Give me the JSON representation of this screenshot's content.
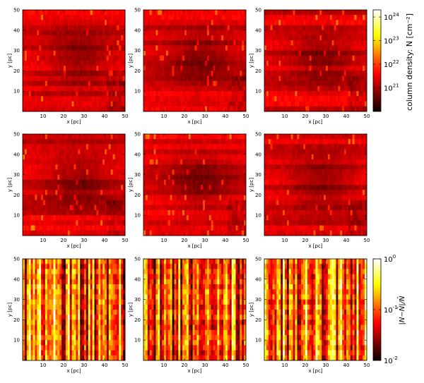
{
  "figure": {
    "rows": 3,
    "cols": 3,
    "description": "3x3 grid of column-density maps (top two rows) and relative-difference maps (bottom row)"
  },
  "chart_data": [
    {
      "type": "heatmap",
      "panel": "r1c1",
      "row": 0,
      "col": 0,
      "colormap": "hot",
      "field": "density",
      "xlabel": "x [pc]",
      "ylabel": "y [pc]",
      "xlim": [
        0,
        50
      ],
      "ylim": [
        0,
        50
      ],
      "xticks": [
        10,
        20,
        30,
        40,
        50
      ],
      "yticks": [
        10,
        20,
        30,
        40,
        50
      ],
      "seed": 11
    },
    {
      "type": "heatmap",
      "panel": "r1c2",
      "row": 0,
      "col": 1,
      "colormap": "hot",
      "field": "density",
      "xlabel": "x [pc]",
      "ylabel": "y [pc]",
      "xlim": [
        0,
        50
      ],
      "ylim": [
        0,
        50
      ],
      "xticks": [
        10,
        20,
        30,
        40,
        50
      ],
      "yticks": [
        10,
        20,
        30,
        40,
        50
      ],
      "seed": 12
    },
    {
      "type": "heatmap",
      "panel": "r1c3",
      "row": 0,
      "col": 2,
      "colormap": "hot",
      "field": "density",
      "xlabel": "x [pc]",
      "ylabel": "y [pc]",
      "xlim": [
        0,
        50
      ],
      "ylim": [
        0,
        50
      ],
      "xticks": [
        10,
        20,
        30,
        40,
        50
      ],
      "yticks": [
        10,
        20,
        30,
        40,
        50
      ],
      "seed": 13
    },
    {
      "type": "heatmap",
      "panel": "r2c1",
      "row": 1,
      "col": 0,
      "colormap": "hot",
      "field": "density",
      "xlabel": "x [pc]",
      "ylabel": "y [pc]",
      "xlim": [
        0,
        50
      ],
      "ylim": [
        0,
        50
      ],
      "xticks": [
        10,
        20,
        30,
        40,
        50
      ],
      "yticks": [
        10,
        20,
        30,
        40,
        50
      ],
      "seed": 21
    },
    {
      "type": "heatmap",
      "panel": "r2c2",
      "row": 1,
      "col": 1,
      "colormap": "hot",
      "field": "density",
      "xlabel": "x [pc]",
      "ylabel": "y [pc]",
      "xlim": [
        0,
        50
      ],
      "ylim": [
        0,
        50
      ],
      "xticks": [
        10,
        20,
        30,
        40,
        50
      ],
      "yticks": [
        10,
        20,
        30,
        40,
        50
      ],
      "seed": 22
    },
    {
      "type": "heatmap",
      "panel": "r2c3",
      "row": 1,
      "col": 2,
      "colormap": "hot",
      "field": "density",
      "xlabel": "x [pc]",
      "ylabel": "y [pc]",
      "xlim": [
        0,
        50
      ],
      "ylim": [
        0,
        50
      ],
      "xticks": [
        10,
        20,
        30,
        40,
        50
      ],
      "yticks": [
        10,
        20,
        30,
        40,
        50
      ],
      "seed": 23
    },
    {
      "type": "heatmap",
      "panel": "r3c1",
      "row": 2,
      "col": 0,
      "colormap": "hot",
      "field": "relative-difference",
      "xlabel": "x [pc]",
      "ylabel": "y [pc]",
      "xlim": [
        0,
        50
      ],
      "ylim": [
        0,
        50
      ],
      "xticks": [
        10,
        20,
        30,
        40,
        50
      ],
      "yticks": [
        10,
        20,
        30,
        40,
        50
      ],
      "seed": 31
    },
    {
      "type": "heatmap",
      "panel": "r3c2",
      "row": 2,
      "col": 1,
      "colormap": "hot",
      "field": "relative-difference",
      "xlabel": "x [pc]",
      "ylabel": "y [pc]",
      "xlim": [
        0,
        50
      ],
      "ylim": [
        0,
        50
      ],
      "xticks": [
        10,
        20,
        30,
        40,
        50
      ],
      "yticks": [
        10,
        20,
        30,
        40,
        50
      ],
      "seed": 32
    },
    {
      "type": "heatmap",
      "panel": "r3c3",
      "row": 2,
      "col": 2,
      "colormap": "hot",
      "field": "relative-difference",
      "xlabel": "x [pc]",
      "ylabel": "y [pc]",
      "xlim": [
        0,
        50
      ],
      "ylim": [
        0,
        50
      ],
      "xticks": [
        10,
        20,
        30,
        40,
        50
      ],
      "yticks": [
        10,
        20,
        30,
        40,
        50
      ],
      "seed": 33
    }
  ],
  "colorbars": {
    "density": {
      "label": "column density: N [cm⁻²]",
      "scale": "log",
      "colormap": "hot",
      "range": [
        1e+20,
        2e+24
      ],
      "ticks": [
        {
          "value": 1e+21,
          "base": "10",
          "exp": "21"
        },
        {
          "value": 1e+22,
          "base": "10",
          "exp": "22"
        },
        {
          "value": 1e+23,
          "base": "10",
          "exp": "23"
        },
        {
          "value": 1e+24,
          "base": "10",
          "exp": "24"
        }
      ]
    },
    "difference": {
      "label": "|N−N̄|/N̄",
      "scale": "log",
      "colormap": "hot",
      "range": [
        0.01,
        1
      ],
      "ticks": [
        {
          "value": 0.01,
          "base": "10",
          "exp": "-2"
        },
        {
          "value": 0.1,
          "base": "10",
          "exp": "-1"
        },
        {
          "value": 1,
          "base": "10",
          "exp": "0"
        }
      ]
    }
  }
}
